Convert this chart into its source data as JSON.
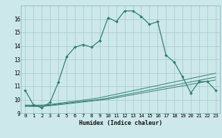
{
  "title": "",
  "xlabel": "Humidex (Indice chaleur)",
  "background_color": "#cce8ea",
  "grid_color": "#aaccce",
  "line_color": "#2e7d6e",
  "x_values": [
    0,
    1,
    2,
    3,
    4,
    5,
    6,
    7,
    8,
    9,
    10,
    11,
    12,
    13,
    14,
    15,
    16,
    17,
    18,
    19,
    20,
    21,
    22,
    23
  ],
  "line1": [
    10.7,
    9.6,
    9.4,
    9.8,
    11.3,
    13.2,
    13.9,
    14.1,
    13.9,
    14.4,
    16.1,
    15.8,
    16.6,
    16.6,
    16.2,
    15.6,
    15.8,
    13.3,
    12.8,
    11.7,
    10.5,
    11.35,
    11.35,
    10.7
  ],
  "line2": [
    9.5,
    9.5,
    9.5,
    9.55,
    9.62,
    9.69,
    9.76,
    9.83,
    9.9,
    9.97,
    10.04,
    10.15,
    10.26,
    10.37,
    10.48,
    10.59,
    10.7,
    10.81,
    10.92,
    11.03,
    11.14,
    11.25,
    11.36,
    11.47
  ],
  "line3": [
    9.55,
    9.55,
    9.55,
    9.6,
    9.67,
    9.74,
    9.81,
    9.88,
    9.95,
    10.02,
    10.12,
    10.24,
    10.36,
    10.48,
    10.6,
    10.72,
    10.84,
    10.96,
    11.08,
    11.2,
    11.32,
    11.44,
    11.56,
    11.68
  ],
  "line4": [
    9.6,
    9.6,
    9.6,
    9.65,
    9.73,
    9.81,
    9.89,
    9.97,
    10.05,
    10.15,
    10.28,
    10.41,
    10.54,
    10.67,
    10.8,
    10.93,
    11.06,
    11.19,
    11.32,
    11.45,
    11.58,
    11.71,
    11.84,
    11.97
  ],
  "xlim": [
    -0.5,
    23.5
  ],
  "ylim": [
    9.0,
    17.0
  ],
  "yticks": [
    9,
    10,
    11,
    12,
    13,
    14,
    15,
    16
  ],
  "xticks": [
    0,
    1,
    2,
    3,
    4,
    5,
    6,
    7,
    8,
    9,
    10,
    11,
    12,
    13,
    14,
    15,
    16,
    17,
    18,
    19,
    20,
    21,
    22,
    23
  ]
}
